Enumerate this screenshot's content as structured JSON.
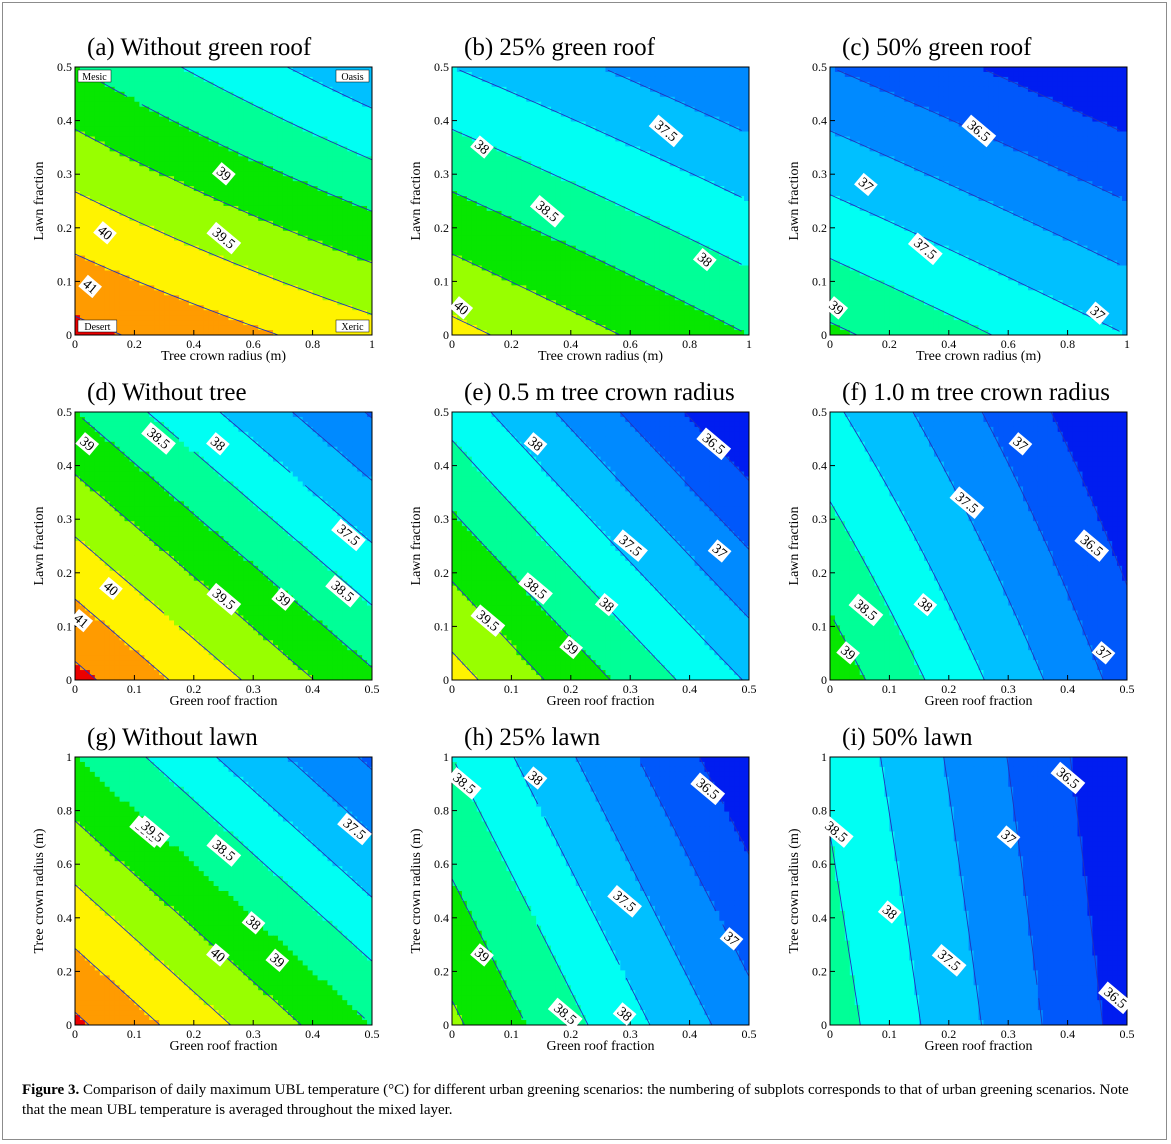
{
  "figure": {
    "caption_label": "Figure 3.",
    "caption_text": "Comparison of daily maximum UBL temperature (°C) for different urban greening scenarios: the numbering of subplots corresponds to that of urban greening scenarios. Note that the mean UBL temperature is averaged throughout the mixed layer."
  },
  "chart_data": [
    {
      "type": "heatmap",
      "title": "(a)  Without green roof",
      "xlabel": "Tree crown radius (m)",
      "ylabel": "Lawn fraction",
      "xlim": [
        0,
        1
      ],
      "ylim": [
        0,
        0.5
      ],
      "xticks": [
        "0",
        "0.2",
        "0.4",
        "0.6",
        "0.8",
        "1"
      ],
      "yticks": [
        "0",
        "0.1",
        "0.2",
        "0.3",
        "0.4",
        "0.5"
      ],
      "x_data": [
        0,
        1
      ],
      "y_data": [
        0,
        0.5
      ],
      "z": [
        [
          41.15,
          40.2
        ],
        [
          39.0,
          37.6
        ]
      ],
      "levels": [
        37.5,
        38,
        38.5,
        39,
        39.5,
        40,
        40.5,
        41
      ],
      "contour_labels": [
        {
          "text": "41",
          "x": 0.05,
          "y": 0.09
        },
        {
          "text": "40",
          "x": 0.1,
          "y": 0.19
        },
        {
          "text": "39.5",
          "x": 0.5,
          "y": 0.18
        },
        {
          "text": "39",
          "x": 0.5,
          "y": 0.3
        }
      ],
      "corner_labels": {
        "tl": "Mesic",
        "tr": "Oasis",
        "bl": "Desert",
        "br": "Xeric"
      }
    },
    {
      "type": "heatmap",
      "title": "(b)  25% green roof",
      "xlabel": "Tree crown radius (m)",
      "ylabel": "Lawn fraction",
      "xlim": [
        0,
        1
      ],
      "ylim": [
        0,
        0.5
      ],
      "xticks": [
        "0",
        "0.2",
        "0.4",
        "0.6",
        "0.8",
        "1"
      ],
      "yticks": [
        "0",
        "0.1",
        "0.2",
        "0.3",
        "0.4",
        "0.5"
      ],
      "x_data": [
        0,
        1
      ],
      "y_data": [
        0,
        0.5
      ],
      "z": [
        [
          40.15,
          39.0
        ],
        [
          38.0,
          37.0
        ]
      ],
      "levels": [
        37,
        37.5,
        38,
        38.5,
        39,
        39.5,
        40
      ],
      "contour_labels": [
        {
          "text": "40",
          "x": 0.03,
          "y": 0.05
        },
        {
          "text": "38.5",
          "x": 0.32,
          "y": 0.23
        },
        {
          "text": "38",
          "x": 0.85,
          "y": 0.14
        },
        {
          "text": "38",
          "x": 0.1,
          "y": 0.35
        },
        {
          "text": "37.5",
          "x": 0.72,
          "y": 0.38
        }
      ]
    },
    {
      "type": "heatmap",
      "title": "(c)  50% green roof",
      "xlabel": "Tree crown radius (m)",
      "ylabel": "Lawn fraction",
      "xlim": [
        0,
        1
      ],
      "ylim": [
        0,
        0.5
      ],
      "xticks": [
        "0",
        "0.2",
        "0.4",
        "0.6",
        "0.8",
        "1"
      ],
      "yticks": [
        "0",
        "0.1",
        "0.2",
        "0.3",
        "0.4",
        "0.5"
      ],
      "x_data": [
        0,
        1
      ],
      "y_data": [
        0,
        0.5
      ],
      "z": [
        [
          39.1,
          38.0
        ],
        [
          37.0,
          36.0
        ]
      ],
      "levels": [
        36,
        36.5,
        37,
        37.5,
        38,
        38.5,
        39
      ],
      "contour_labels": [
        {
          "text": "39",
          "x": 0.02,
          "y": 0.05
        },
        {
          "text": "37.5",
          "x": 0.32,
          "y": 0.16
        },
        {
          "text": "37",
          "x": 0.9,
          "y": 0.04
        },
        {
          "text": "37",
          "x": 0.12,
          "y": 0.28
        },
        {
          "text": "36.5",
          "x": 0.5,
          "y": 0.38
        }
      ]
    },
    {
      "type": "heatmap",
      "title": "(d)  Without tree",
      "xlabel": "Green roof fraction",
      "ylabel": "Lawn fraction",
      "xlim": [
        0,
        0.5
      ],
      "ylim": [
        0,
        0.5
      ],
      "xticks": [
        "0",
        "0.1",
        "0.2",
        "0.3",
        "0.4",
        "0.5"
      ],
      "yticks": [
        "0",
        "0.1",
        "0.2",
        "0.3",
        "0.4",
        "0.5"
      ],
      "x_data": [
        0,
        0.5
      ],
      "y_data": [
        0,
        0.5
      ],
      "z": [
        [
          41.15,
          39.1
        ],
        [
          39.0,
          36.95
        ]
      ],
      "levels": [
        37,
        37.5,
        38,
        38.5,
        39,
        39.5,
        40,
        40.5,
        41
      ],
      "contour_labels": [
        {
          "text": "41",
          "x": 0.01,
          "y": 0.11
        },
        {
          "text": "40",
          "x": 0.06,
          "y": 0.17
        },
        {
          "text": "39.5",
          "x": 0.25,
          "y": 0.15
        },
        {
          "text": "39",
          "x": 0.35,
          "y": 0.15
        },
        {
          "text": "38.5",
          "x": 0.45,
          "y": 0.165
        },
        {
          "text": "37.5",
          "x": 0.46,
          "y": 0.27
        },
        {
          "text": "39",
          "x": 0.02,
          "y": 0.44
        },
        {
          "text": "38.5",
          "x": 0.14,
          "y": 0.45
        },
        {
          "text": "38",
          "x": 0.24,
          "y": 0.44
        }
      ]
    },
    {
      "type": "heatmap",
      "title": "(e)  0.5 m tree crown radius",
      "xlabel": "Green roof fraction",
      "ylabel": "Lawn fraction",
      "xlim": [
        0,
        0.5
      ],
      "ylim": [
        0,
        0.5
      ],
      "xticks": [
        "0",
        "0.1",
        "0.2",
        "0.3",
        "0.4",
        "0.5"
      ],
      "yticks": [
        "0",
        "0.1",
        "0.2",
        "0.3",
        "0.4",
        "0.5"
      ],
      "x_data": [
        0,
        0.5
      ],
      "y_data": [
        0,
        0.5
      ],
      "z": [
        [
          40.2,
          37.95
        ],
        [
          38.3,
          36.0
        ]
      ],
      "levels": [
        36.5,
        37,
        37.5,
        38,
        38.5,
        39,
        39.5,
        40
      ],
      "contour_labels": [
        {
          "text": "39.5",
          "x": 0.06,
          "y": 0.11
        },
        {
          "text": "39",
          "x": 0.2,
          "y": 0.06
        },
        {
          "text": "38.5",
          "x": 0.14,
          "y": 0.17
        },
        {
          "text": "38",
          "x": 0.26,
          "y": 0.14
        },
        {
          "text": "37.5",
          "x": 0.3,
          "y": 0.25
        },
        {
          "text": "37",
          "x": 0.45,
          "y": 0.24
        },
        {
          "text": "38",
          "x": 0.14,
          "y": 0.44
        },
        {
          "text": "36.5",
          "x": 0.44,
          "y": 0.44
        }
      ]
    },
    {
      "type": "heatmap",
      "title": "(f)  1.0 m tree crown radius",
      "xlabel": "Green roof fraction",
      "ylabel": "Lawn fraction",
      "xlim": [
        0,
        0.5
      ],
      "ylim": [
        0,
        0.5
      ],
      "xticks": [
        "0",
        "0.1",
        "0.2",
        "0.3",
        "0.4",
        "0.5"
      ],
      "yticks": [
        "0",
        "0.1",
        "0.2",
        "0.3",
        "0.4",
        "0.5"
      ],
      "x_data": [
        0,
        0.5
      ],
      "y_data": [
        0,
        0.5
      ],
      "z": [
        [
          39.3,
          36.8
        ],
        [
          38.1,
          35.95
        ]
      ],
      "levels": [
        36.5,
        37,
        37.5,
        38,
        38.5,
        39
      ],
      "contour_labels": [
        {
          "text": "39",
          "x": 0.03,
          "y": 0.05
        },
        {
          "text": "38.5",
          "x": 0.06,
          "y": 0.13
        },
        {
          "text": "38",
          "x": 0.16,
          "y": 0.14
        },
        {
          "text": "37.5",
          "x": 0.23,
          "y": 0.33
        },
        {
          "text": "37",
          "x": 0.32,
          "y": 0.44
        },
        {
          "text": "36.5",
          "x": 0.44,
          "y": 0.25
        },
        {
          "text": "37",
          "x": 0.46,
          "y": 0.05
        }
      ]
    },
    {
      "type": "heatmap",
      "title": "(g)  Without lawn",
      "xlabel": "Green roof fraction",
      "ylabel": "Tree crown radius (m)",
      "xlim": [
        0,
        0.5
      ],
      "ylim": [
        0,
        1
      ],
      "xticks": [
        "0",
        "0.1",
        "0.2",
        "0.3",
        "0.4",
        "0.5"
      ],
      "yticks": [
        "0",
        "0.2",
        "0.4",
        "0.6",
        "0.8",
        "1"
      ],
      "x_data": [
        0,
        0.5
      ],
      "y_data": [
        0,
        1
      ],
      "z": [
        [
          41.1,
          39.0
        ],
        [
          39.0,
          36.9
        ]
      ],
      "levels": [
        37,
        37.5,
        38,
        38.5,
        39,
        39.5,
        40,
        40.5,
        41
      ],
      "contour_labels": [
        {
          "text": "40",
          "x": 0.24,
          "y": 0.26
        },
        {
          "text": "39.5",
          "x": 0.12,
          "y": 0.72
        },
        {
          "text": "39",
          "x": 0.34,
          "y": 0.24
        },
        {
          "text": "38.5",
          "x": 0.25,
          "y": 0.65
        },
        {
          "text": "38",
          "x": 0.3,
          "y": 0.38
        },
        {
          "text": "37.5",
          "x": 0.47,
          "y": 0.73
        },
        {
          "text": "39.5",
          "x": 0.13,
          "y": 0.72
        }
      ]
    },
    {
      "type": "heatmap",
      "title": "(h)  25% lawn",
      "xlabel": "Green roof fraction",
      "ylabel": "Tree crown radius (m)",
      "xlim": [
        0,
        0.5
      ],
      "ylim": [
        0,
        1
      ],
      "xticks": [
        "0",
        "0.1",
        "0.2",
        "0.3",
        "0.4",
        "0.5"
      ],
      "yticks": [
        "0",
        "0.2",
        "0.4",
        "0.6",
        "0.8",
        "1"
      ],
      "x_data": [
        0,
        0.5
      ],
      "y_data": [
        0,
        1
      ],
      "z": [
        [
          39.6,
          37.2
        ],
        [
          38.5,
          36.1
        ]
      ],
      "levels": [
        36.5,
        37,
        37.5,
        38,
        38.5,
        39,
        39.5
      ],
      "contour_labels": [
        {
          "text": "39",
          "x": 0.05,
          "y": 0.26
        },
        {
          "text": "38.5",
          "x": 0.02,
          "y": 0.9
        },
        {
          "text": "38",
          "x": 0.14,
          "y": 0.92
        },
        {
          "text": "37.5",
          "x": 0.29,
          "y": 0.46
        },
        {
          "text": "37",
          "x": 0.47,
          "y": 0.32
        },
        {
          "text": "36.5",
          "x": 0.43,
          "y": 0.88
        },
        {
          "text": "38.5",
          "x": 0.19,
          "y": 0.04
        },
        {
          "text": "38",
          "x": 0.29,
          "y": 0.04
        }
      ]
    },
    {
      "type": "heatmap",
      "title": "(i)  50% lawn",
      "xlabel": "Green roof fraction",
      "ylabel": "Tree crown radius (m)",
      "xlim": [
        0,
        0.5
      ],
      "ylim": [
        0,
        1
      ],
      "xticks": [
        "0",
        "0.1",
        "0.2",
        "0.3",
        "0.4",
        "0.5"
      ],
      "yticks": [
        "0",
        "0.2",
        "0.4",
        "0.6",
        "0.8",
        "1"
      ],
      "x_data": [
        0,
        0.5
      ],
      "y_data": [
        0,
        1
      ],
      "z": [
        [
          38.75,
          36.3
        ],
        [
          38.4,
          36.05
        ]
      ],
      "levels": [
        36.5,
        37,
        37.5,
        38,
        38.5
      ],
      "contour_labels": [
        {
          "text": "38.5",
          "x": 0.01,
          "y": 0.72
        },
        {
          "text": "38",
          "x": 0.1,
          "y": 0.42
        },
        {
          "text": "37.5",
          "x": 0.2,
          "y": 0.24
        },
        {
          "text": "37",
          "x": 0.3,
          "y": 0.7
        },
        {
          "text": "36.5",
          "x": 0.4,
          "y": 0.92
        },
        {
          "text": "36.5",
          "x": 0.48,
          "y": 0.1
        }
      ]
    }
  ]
}
